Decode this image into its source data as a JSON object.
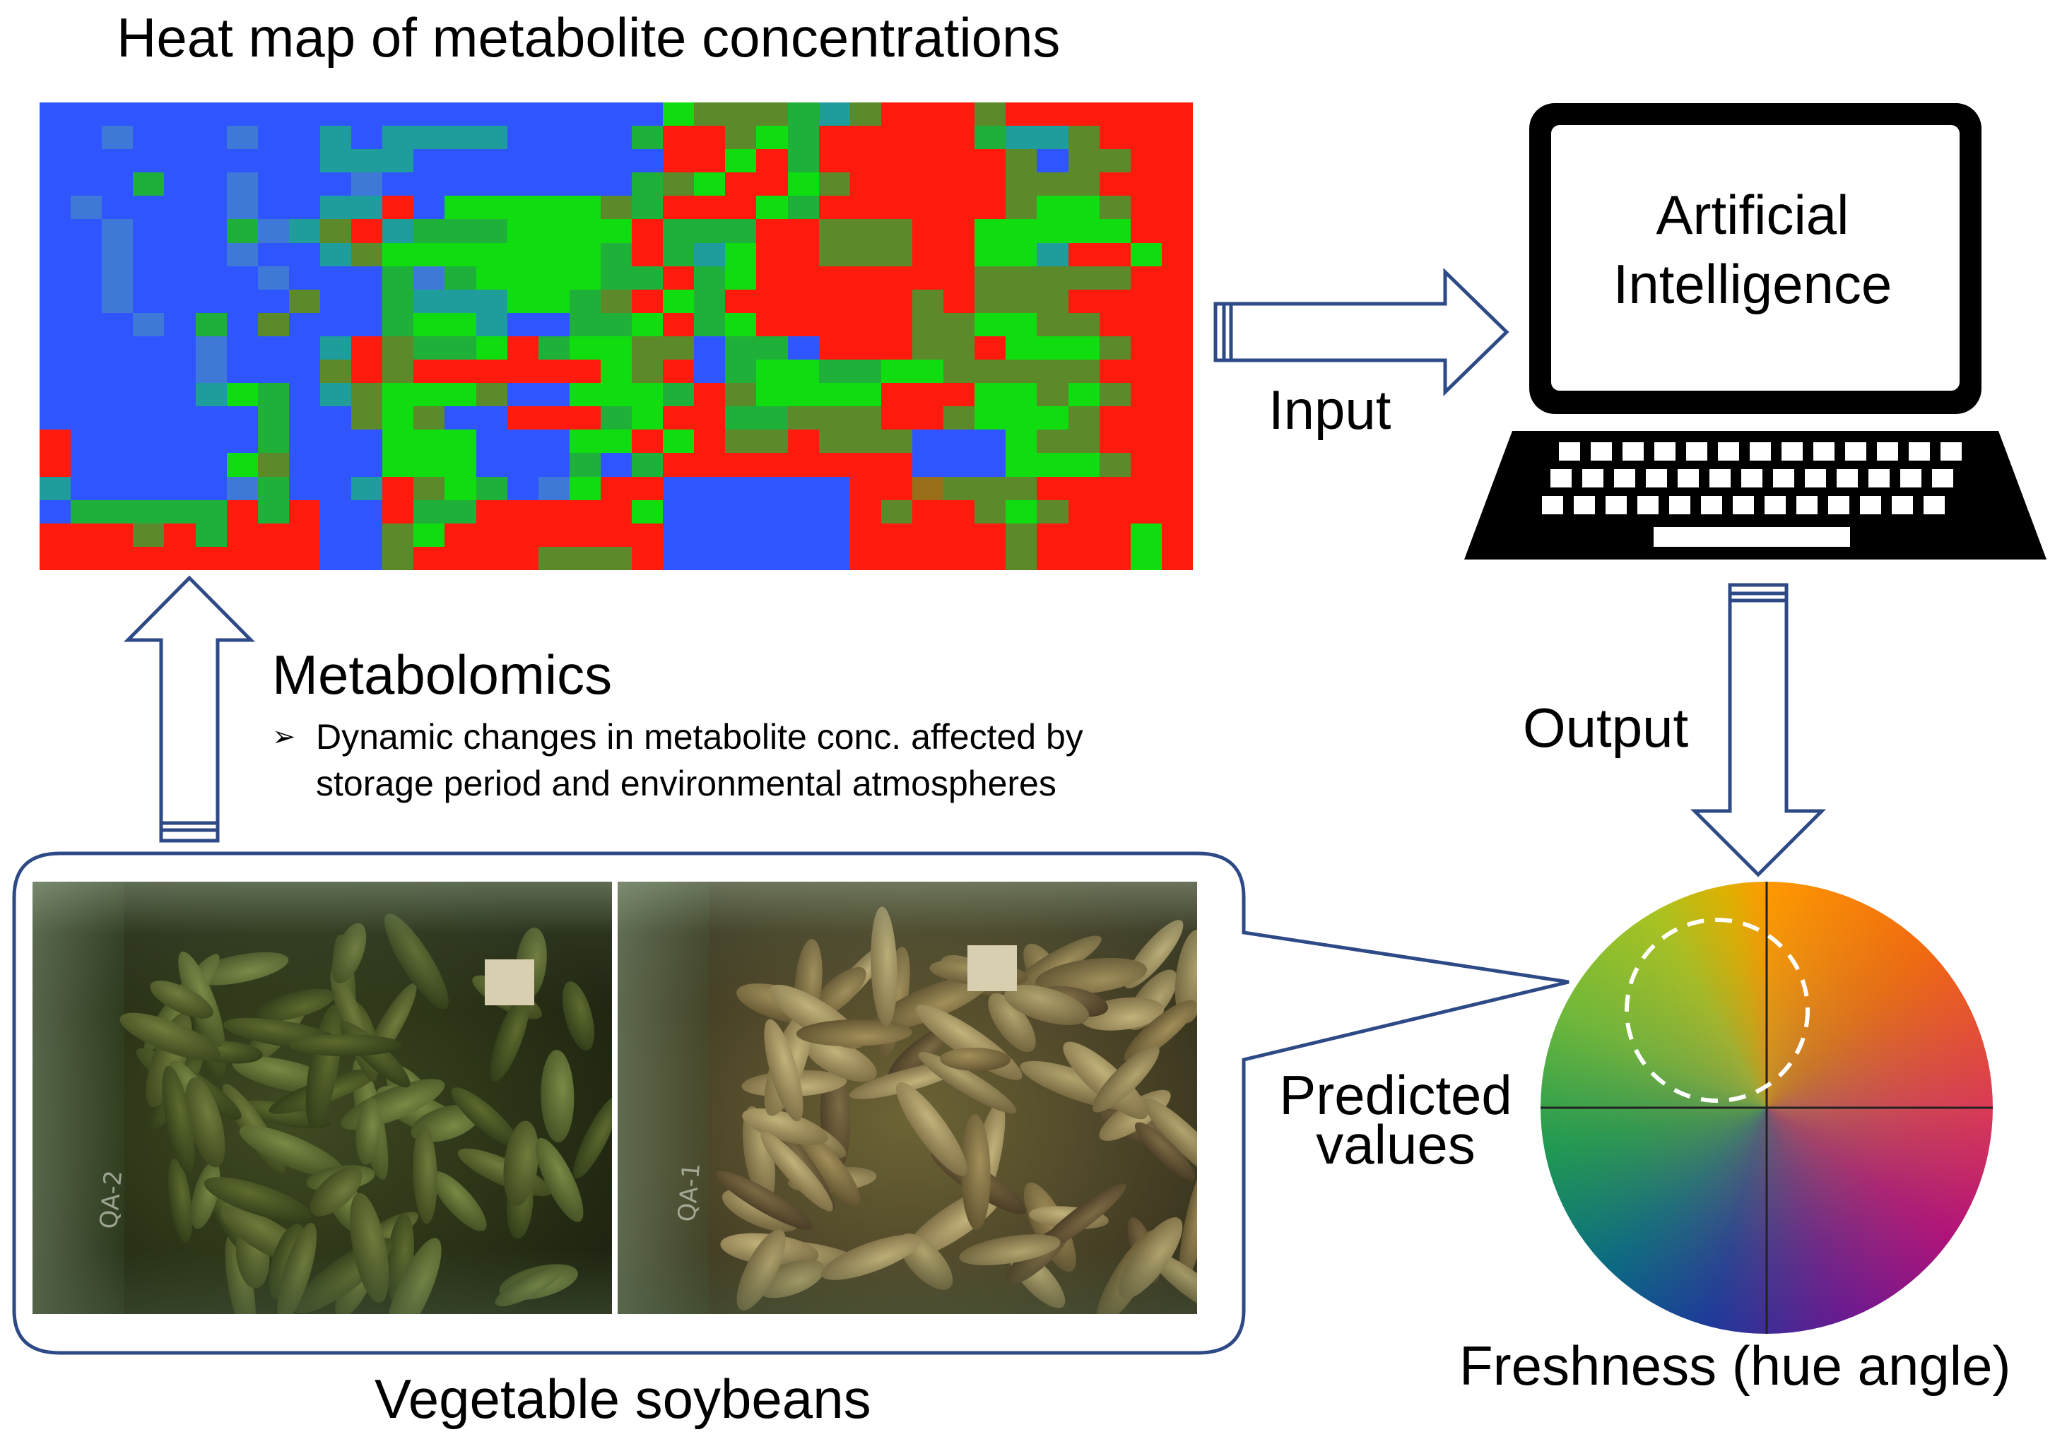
{
  "heatmap": {
    "title": "Heat map of metabolite concentrations",
    "rows": 20,
    "cols": 37,
    "palette": {
      "B": "#2f55ff",
      "b": "#3f79d8",
      "t": "#1f9c9c",
      "G": "#0fdd0f",
      "g": "#1fb03a",
      "o": "#5c8a2a",
      "r": "#c8461d",
      "R": "#ff1a0e",
      "k": "#9a6f1a"
    },
    "cells": [
      "BBBBBBBBBBBBBBBBBBBBGooogtoRRRoRRRRRR",
      "BBbBBBbBBtBttttBBBBgRRoGgRRRRRgttoRRR",
      "BBBBBBBBBtttBBBBBBBBRRGRgRRRRRRoBooRR",
      "BBBgBBbBBBbBBBBBBBBgoGRRGoRRRRRoooRRR",
      "BbBBBBbBBttRBGGGGGogRRRGgRRRRRRoGGoRR",
      "BBbBBBgbtoRtgggGGGGRgggRRoooRRGGGGGRR",
      "BBbBBBbBBtoGGGGGGGgRgtGRRoooRRGGtRRGR",
      "BBbBBBBbBBBgbgGGGGggRgGRRRRRRRoooooRR",
      "BBbBBBBBoBBgtttGGgoRGgRRRRRRoRoooRRRR",
      "BBBbBgBoBBBgGGtBBggGRgGRRRRRooGGooRRR",
      "BBBBBbBBBtRoggGRgGGooBggBRRRooRGGGoRR",
      "BBBBBbBBBoRoRRRRRRGoRBgGGggGGoooooRRR",
      "BBBBBtGgBtoGGGoBBGGGgRoGGGGRRRGGoGoRR",
      "BBBBBBBgBBoGoBBRRRgGRRggoooRRoGGGoRRR",
      "RBBBBBBgBBBGGGBBBGGRGRooRoooBBBGooRRR",
      "RBBBBBGoBBBGGGBBBgBgRRRRRRRRBBBGGGoRR",
      "tBBBBBbgBBtRoGgBbGRRBBBBBBRRkoooRRRRR",
      "BgggggRgRBBRggRRRRRGBBBBBBRoRRoGoRRRR",
      "RRRoRgRRRBBoGRRRRRRRBBBBBBRRRRRoRRRGR",
      "RRRRRRRRRBBoRRRRoooRBBBBBBRRRRRoRRRGR"
    ]
  },
  "arrows": {
    "input_label": "Input",
    "output_label": "Output"
  },
  "ai": {
    "line1": "Artificial",
    "line2": "Intelligence"
  },
  "metabolomics": {
    "title": "Metabolomics",
    "bullet_marker": "➢",
    "bullet_line1": "Dynamic changes in metabolite conc. affected by",
    "bullet_line2": "storage period and environmental atmospheres"
  },
  "soybeans": {
    "label": "Vegetable soybeans",
    "bag_left_mark": "QA-2",
    "bag_right_mark": "QA-1"
  },
  "hue": {
    "predicted_line1": "Predicted",
    "predicted_line2": "values",
    "freshness_label": "Freshness (hue angle)"
  },
  "colors": {
    "arrow_outline": "#2e4a86",
    "callout_outline": "#2e4a86",
    "laptop": "#000000"
  }
}
